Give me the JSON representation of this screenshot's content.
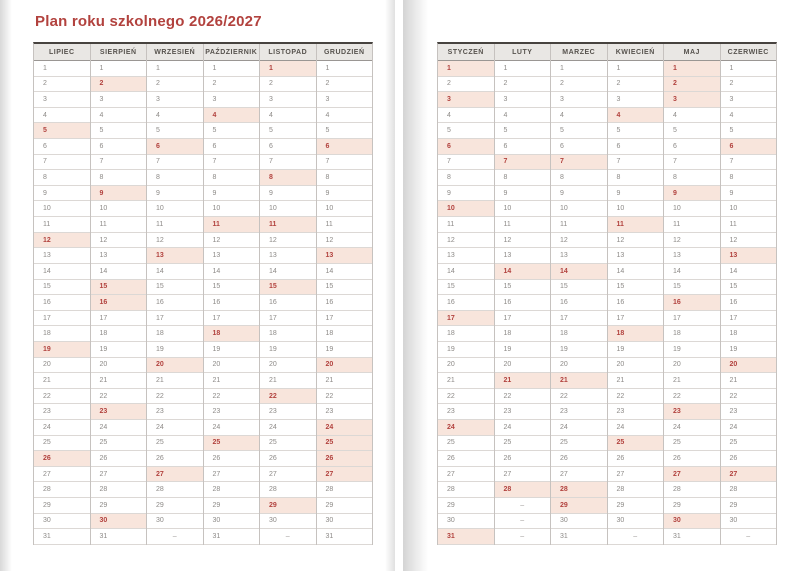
{
  "title": "Plan roku szkolnego 2026/2027",
  "empty_marker": "–",
  "colors": {
    "accent": "#b2423e",
    "highlight_bg": "#f8e5dc",
    "header_bg": "#e9e7e4",
    "header_text": "#57534e",
    "day_text": "#8d8a87"
  },
  "pages": [
    {
      "side": "left",
      "months": [
        {
          "label": "LIPIEC",
          "num_days": 31,
          "highlighted_days": [
            5,
            12,
            19,
            26
          ]
        },
        {
          "label": "SIERPIEŃ",
          "num_days": 31,
          "highlighted_days": [
            2,
            9,
            15,
            16,
            23,
            30
          ]
        },
        {
          "label": "WRZESIEŃ",
          "num_days": 30,
          "highlighted_days": [
            6,
            13,
            20,
            27
          ]
        },
        {
          "label": "PAŹDZIERNIK",
          "num_days": 31,
          "highlighted_days": [
            4,
            11,
            18,
            25
          ]
        },
        {
          "label": "LISTOPAD",
          "num_days": 30,
          "highlighted_days": [
            1,
            8,
            11,
            15,
            22,
            29
          ]
        },
        {
          "label": "GRUDZIEŃ",
          "num_days": 31,
          "highlighted_days": [
            6,
            13,
            20,
            24,
            25,
            26,
            27
          ]
        }
      ]
    },
    {
      "side": "right",
      "months": [
        {
          "label": "STYCZEŃ",
          "num_days": 31,
          "highlighted_days": [
            1,
            3,
            6,
            10,
            17,
            24,
            31
          ]
        },
        {
          "label": "LUTY",
          "num_days": 28,
          "highlighted_days": [
            7,
            14,
            21,
            28
          ]
        },
        {
          "label": "MARZEC",
          "num_days": 31,
          "highlighted_days": [
            7,
            14,
            21,
            28,
            29
          ]
        },
        {
          "label": "KWIECIEŃ",
          "num_days": 30,
          "highlighted_days": [
            4,
            11,
            18,
            25
          ]
        },
        {
          "label": "MAJ",
          "num_days": 31,
          "highlighted_days": [
            1,
            2,
            3,
            9,
            16,
            23,
            27,
            30
          ]
        },
        {
          "label": "CZERWIEC",
          "num_days": 30,
          "highlighted_days": [
            6,
            13,
            20,
            27
          ]
        }
      ]
    }
  ]
}
